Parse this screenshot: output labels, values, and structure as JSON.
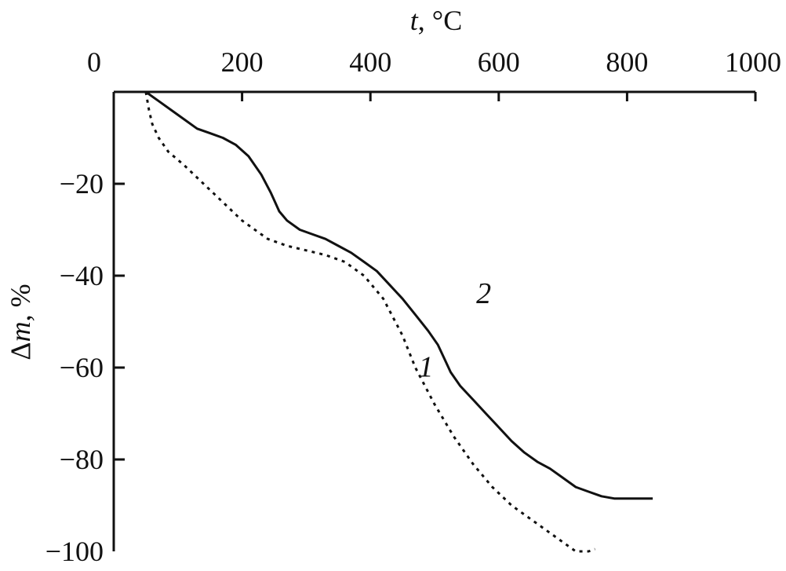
{
  "chart_data": {
    "type": "line",
    "xlabel": "t, °C",
    "ylabel": "Δm, %",
    "xlim": [
      0,
      1000
    ],
    "ylim": [
      -100,
      0
    ],
    "x_ticks": [
      0,
      200,
      400,
      600,
      800,
      1000
    ],
    "y_ticks": [
      -20,
      -40,
      -60,
      -80,
      -100
    ],
    "x_axis_position": "top",
    "grid": false,
    "legend": "none",
    "series": [
      {
        "name": "1",
        "style": "dotted",
        "color": "#111111",
        "points": [
          [
            50,
            0
          ],
          [
            55,
            -4
          ],
          [
            60,
            -7
          ],
          [
            70,
            -10
          ],
          [
            85,
            -13
          ],
          [
            110,
            -16
          ],
          [
            140,
            -20
          ],
          [
            170,
            -24
          ],
          [
            200,
            -28
          ],
          [
            230,
            -31
          ],
          [
            240,
            -32
          ],
          [
            270,
            -33.5
          ],
          [
            300,
            -34.5
          ],
          [
            330,
            -35.5
          ],
          [
            360,
            -37
          ],
          [
            390,
            -40
          ],
          [
            420,
            -45
          ],
          [
            450,
            -53
          ],
          [
            470,
            -60
          ],
          [
            500,
            -68
          ],
          [
            530,
            -75
          ],
          [
            560,
            -81
          ],
          [
            590,
            -86
          ],
          [
            620,
            -90
          ],
          [
            660,
            -94
          ],
          [
            700,
            -98
          ],
          [
            720,
            -100
          ],
          [
            740,
            -100
          ],
          [
            750,
            -99.5
          ]
        ]
      },
      {
        "name": "2",
        "style": "solid",
        "color": "#111111",
        "points": [
          [
            50,
            0
          ],
          [
            70,
            -2
          ],
          [
            90,
            -4
          ],
          [
            110,
            -6
          ],
          [
            130,
            -8
          ],
          [
            150,
            -9
          ],
          [
            170,
            -10
          ],
          [
            190,
            -11.5
          ],
          [
            210,
            -14
          ],
          [
            230,
            -18
          ],
          [
            245,
            -22
          ],
          [
            258,
            -26
          ],
          [
            270,
            -28
          ],
          [
            290,
            -30
          ],
          [
            310,
            -31
          ],
          [
            330,
            -32
          ],
          [
            350,
            -33.5
          ],
          [
            370,
            -35
          ],
          [
            390,
            -37
          ],
          [
            410,
            -39
          ],
          [
            430,
            -42
          ],
          [
            450,
            -45
          ],
          [
            470,
            -48.5
          ],
          [
            490,
            -52
          ],
          [
            505,
            -55
          ],
          [
            515,
            -58
          ],
          [
            525,
            -61
          ],
          [
            540,
            -64
          ],
          [
            560,
            -67
          ],
          [
            580,
            -70
          ],
          [
            600,
            -73
          ],
          [
            620,
            -76
          ],
          [
            640,
            -78.5
          ],
          [
            660,
            -80.5
          ],
          [
            680,
            -82
          ],
          [
            700,
            -84
          ],
          [
            720,
            -86
          ],
          [
            740,
            -87
          ],
          [
            760,
            -88
          ],
          [
            780,
            -88.5
          ],
          [
            800,
            -88.5
          ],
          [
            840,
            -88.5
          ]
        ]
      }
    ]
  }
}
